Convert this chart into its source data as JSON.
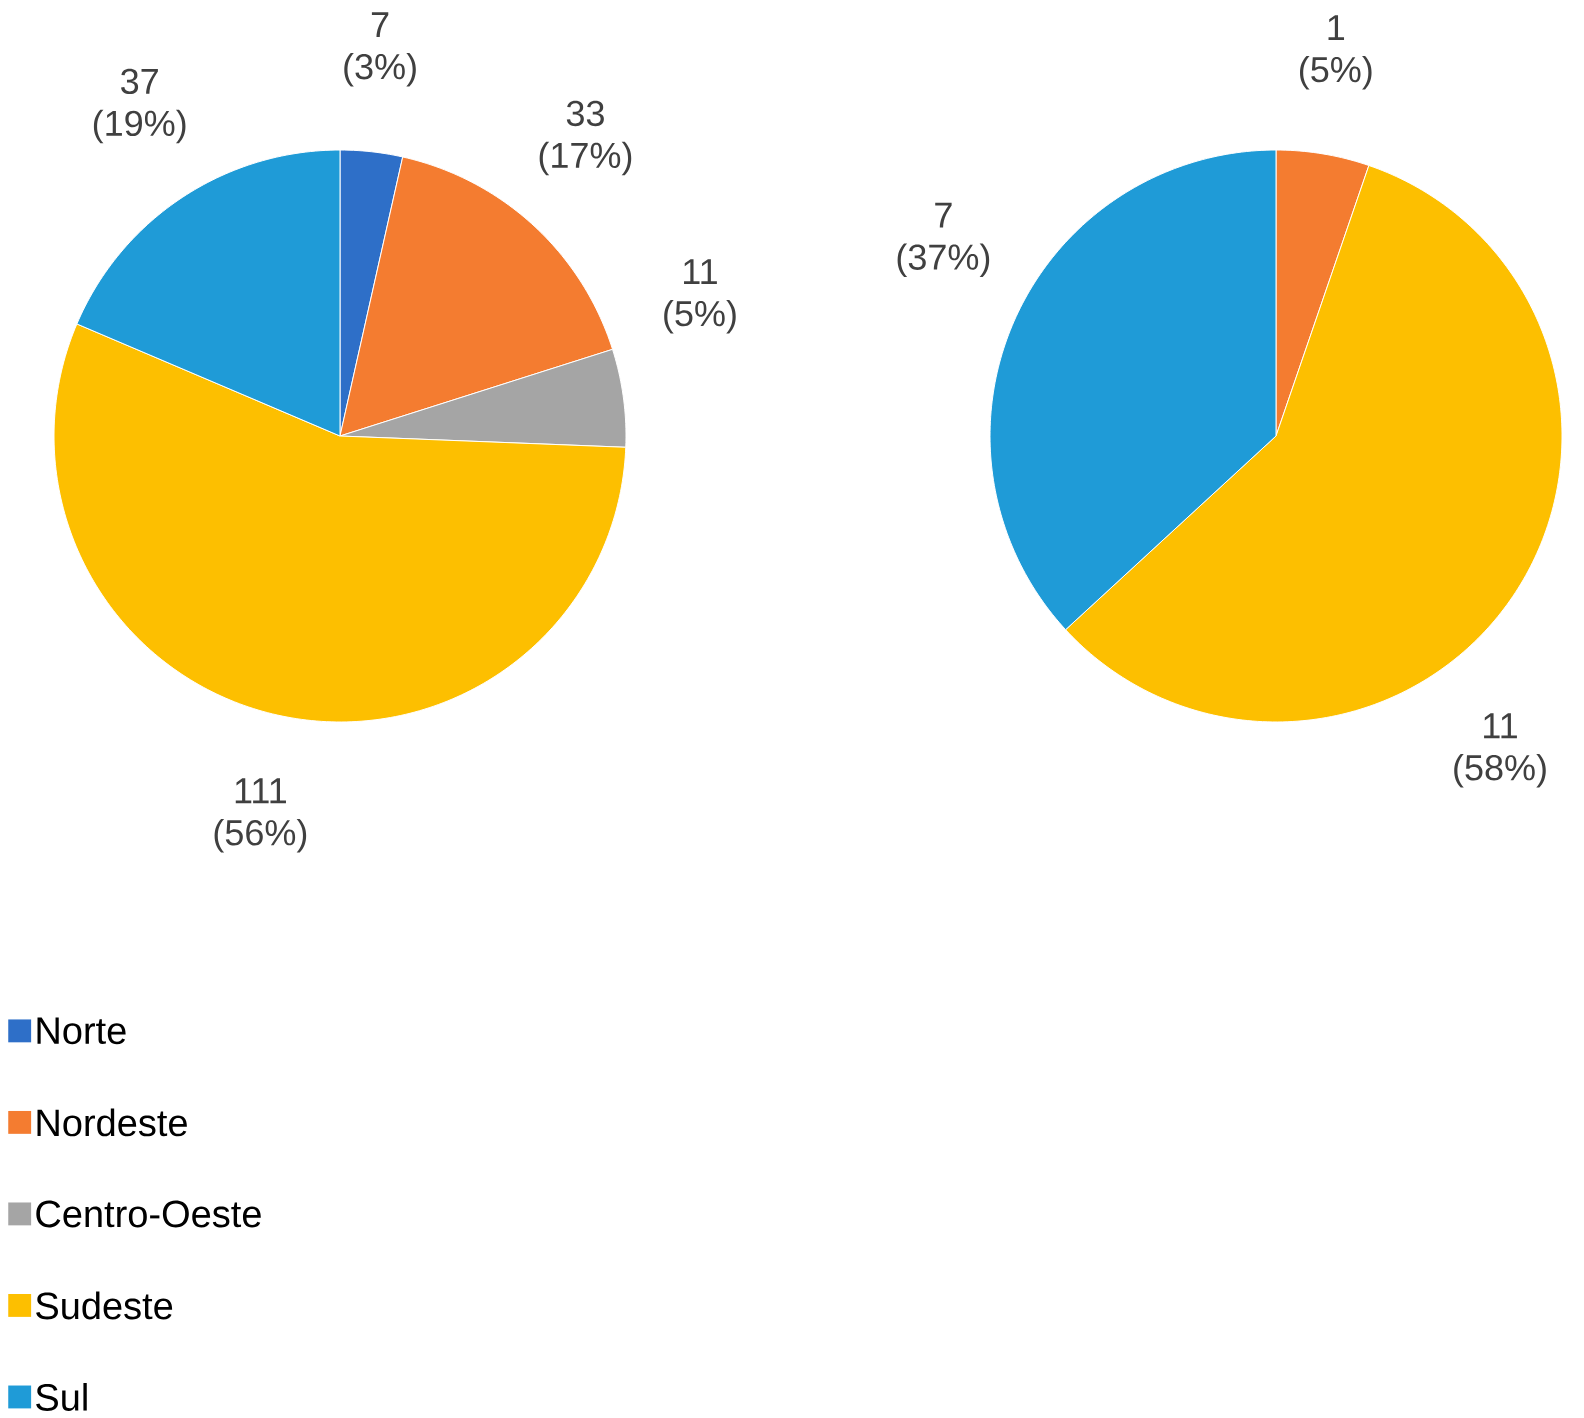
{
  "chart_data": [
    {
      "type": "pie",
      "categories": [
        "Norte",
        "Nordeste",
        "Centro-Oeste",
        "Sudeste",
        "Sul"
      ],
      "values": [
        7,
        33,
        11,
        111,
        37
      ],
      "value_labels": [
        "7 (3%)",
        "33 (17%)",
        "11 (5%)",
        "111 (56%)",
        "37 (19%)"
      ],
      "colors": [
        "#2e6fc8",
        "#f47c30",
        "#a5a5a5",
        "#fdbf00",
        "#1f9bd7"
      ],
      "legend": "bottom left"
    },
    {
      "type": "pie",
      "categories": [
        null,
        null,
        null
      ],
      "values": [
        1,
        11,
        7
      ],
      "value_labels": [
        "1 (5%)",
        "11 (58%)",
        "7 (37%)"
      ],
      "colors": [
        "#f47c30",
        "#fdbf00",
        "#1f9bd7"
      ]
    }
  ]
}
